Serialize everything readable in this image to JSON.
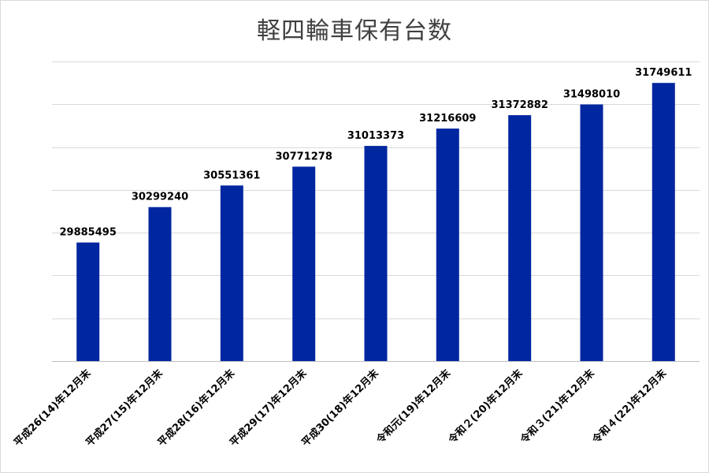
{
  "chart_data": {
    "type": "bar",
    "title": "軽四輪車保有台数",
    "categories": [
      "平成26(14)年12月末",
      "平成27(15)年12月末",
      "平成28(16)年12月末",
      "平成29(17)年12月末",
      "平成30(18)年12月末",
      "令和元(19)年12月末",
      "令和２(20)年12月末",
      "令和３(21)年12月末",
      "令和４(22)年12月末"
    ],
    "values": [
      29885495,
      30299240,
      30551361,
      30771278,
      31013373,
      31216609,
      31372882,
      31498010,
      31749611
    ],
    "data_labels": [
      "29885495",
      "30299240",
      "30551361",
      "30771278",
      "31013373",
      "31216609",
      "31372882",
      "31498010",
      "31749611"
    ],
    "ylim": [
      28500000,
      32000000
    ],
    "gridline_step": 500000,
    "grid": true,
    "y_tick_labels_shown": false,
    "legend": "none",
    "bar_color": "#0026a0"
  }
}
